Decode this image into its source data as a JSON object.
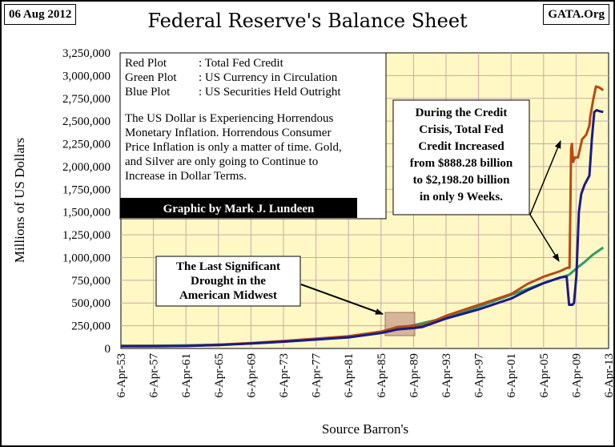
{
  "header": {
    "date_badge": "06 Aug 2012",
    "title": "Federal Reserve's Balance Sheet",
    "source_badge": "GATA.Org"
  },
  "legend_box": {
    "lines": [
      {
        "key": "Red Plot",
        "sep": ": Total Fed Credit"
      },
      {
        "key": "Green Plot",
        "sep": ": US Currency in Circulation"
      },
      {
        "key": "Blue Plot",
        "sep": ": US Securities Held Outright"
      }
    ],
    "commentary": [
      "The US Dollar is Experiencing Horrendous",
      "Monetary Inflation.  Horrendous Consumer",
      "Price Inflation is only a matter of time.  Gold,",
      "and Silver are only going to Continue to",
      "Increase in Dollar Terms."
    ],
    "credit": "Graphic by Mark J. Lundeen"
  },
  "callouts": {
    "drought": [
      "The Last Significant",
      "Drought in the",
      "American Midwest"
    ],
    "crisis": [
      "During the Credit",
      "Crisis, Total Fed",
      "Credit Increased",
      "from $888.28 billion",
      "to $2,198.20 billion",
      "in only 9 Weeks."
    ]
  },
  "colors": {
    "plot_bg": "#fff8c4",
    "grid": "#c8a9a9",
    "red": "#b84a10",
    "green": "#2e9a6a",
    "blue": "#1a1a8a",
    "drought_box": "#c8a08a"
  },
  "chart_data": {
    "type": "line",
    "title": "Federal Reserve's Balance Sheet",
    "xlabel": "Source Barron's",
    "ylabel": "Millions of US Dollars",
    "ylim": [
      0,
      3250000
    ],
    "xlim": [
      1953.26,
      2013.26
    ],
    "grid": true,
    "y_ticks": [
      "0",
      "250,000",
      "500,000",
      "750,000",
      "1,000,000",
      "1,250,000",
      "1,500,000",
      "1,750,000",
      "2,000,000",
      "2,250,000",
      "2,500,000",
      "2,750,000",
      "3,000,000",
      "3,250,000"
    ],
    "x_ticks": [
      "6-Apr-53",
      "6-Apr-57",
      "6-Apr-61",
      "6-Apr-65",
      "6-Apr-69",
      "6-Apr-73",
      "6-Apr-77",
      "6-Apr-81",
      "6-Apr-85",
      "6-Apr-89",
      "6-Apr-93",
      "6-Apr-97",
      "6-Apr-01",
      "6-Apr-05",
      "6-Apr-09",
      "6-Apr-13"
    ],
    "series": [
      {
        "name": "Total Fed Credit",
        "color": "#b84a10",
        "points": [
          [
            1953.3,
            27000
          ],
          [
            1957.3,
            27000
          ],
          [
            1961.3,
            29000
          ],
          [
            1965.3,
            42000
          ],
          [
            1969.3,
            59000
          ],
          [
            1973.3,
            83000
          ],
          [
            1977.3,
            108000
          ],
          [
            1981.3,
            135000
          ],
          [
            1985.3,
            185000
          ],
          [
            1987.3,
            235000
          ],
          [
            1989.3,
            250000
          ],
          [
            1990.3,
            250000
          ],
          [
            1993.3,
            360000
          ],
          [
            1997.3,
            480000
          ],
          [
            2001.3,
            600000
          ],
          [
            2003.3,
            710000
          ],
          [
            2005.3,
            790000
          ],
          [
            2007.3,
            850000
          ],
          [
            2008.2,
            888000
          ],
          [
            2008.45,
            888000
          ],
          [
            2008.55,
            1500000
          ],
          [
            2008.65,
            2198000
          ],
          [
            2008.75,
            2250000
          ],
          [
            2008.9,
            2050000
          ],
          [
            2009.1,
            2100000
          ],
          [
            2009.5,
            2100000
          ],
          [
            2010.0,
            2300000
          ],
          [
            2010.5,
            2350000
          ],
          [
            2010.9,
            2450000
          ],
          [
            2011.0,
            2550000
          ],
          [
            2011.4,
            2750000
          ],
          [
            2011.7,
            2880000
          ],
          [
            2012.1,
            2870000
          ],
          [
            2012.6,
            2840000
          ]
        ]
      },
      {
        "name": "US Currency in Circulation",
        "color": "#2e9a6a",
        "points": [
          [
            1953.3,
            30000
          ],
          [
            1957.3,
            31000
          ],
          [
            1961.3,
            34000
          ],
          [
            1965.3,
            42000
          ],
          [
            1969.3,
            55000
          ],
          [
            1973.3,
            75000
          ],
          [
            1977.3,
            100000
          ],
          [
            1981.3,
            135000
          ],
          [
            1985.3,
            185000
          ],
          [
            1989.3,
            255000
          ],
          [
            1993.3,
            340000
          ],
          [
            1997.3,
            460000
          ],
          [
            2001.3,
            590000
          ],
          [
            2005.3,
            720000
          ],
          [
            2008.4,
            810000
          ],
          [
            2009.3,
            880000
          ],
          [
            2010.3,
            950000
          ],
          [
            2011.3,
            1030000
          ],
          [
            2012.6,
            1110000
          ]
        ]
      },
      {
        "name": "US Securities Held Outright",
        "color": "#1a1a8a",
        "points": [
          [
            1953.3,
            24000
          ],
          [
            1957.3,
            24000
          ],
          [
            1961.3,
            27000
          ],
          [
            1965.3,
            38000
          ],
          [
            1969.3,
            55000
          ],
          [
            1973.3,
            75000
          ],
          [
            1977.3,
            98000
          ],
          [
            1981.3,
            122000
          ],
          [
            1985.3,
            170000
          ],
          [
            1987.3,
            210000
          ],
          [
            1989.3,
            225000
          ],
          [
            1990.3,
            235000
          ],
          [
            1993.3,
            330000
          ],
          [
            1997.3,
            430000
          ],
          [
            2001.3,
            550000
          ],
          [
            2003.3,
            640000
          ],
          [
            2005.3,
            720000
          ],
          [
            2007.3,
            780000
          ],
          [
            2008.1,
            790000
          ],
          [
            2008.4,
            480000
          ],
          [
            2008.8,
            480000
          ],
          [
            2009.0,
            500000
          ],
          [
            2009.3,
            800000
          ],
          [
            2009.6,
            1500000
          ],
          [
            2009.9,
            1700000
          ],
          [
            2010.3,
            1800000
          ],
          [
            2010.9,
            1900000
          ],
          [
            2011.2,
            2300000
          ],
          [
            2011.5,
            2600000
          ],
          [
            2011.8,
            2620000
          ],
          [
            2012.1,
            2610000
          ],
          [
            2012.6,
            2600000
          ]
        ]
      }
    ]
  }
}
